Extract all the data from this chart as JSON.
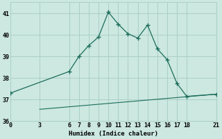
{
  "xlabel": "Humidex (Indice chaleur)",
  "ylabel": "",
  "bg_color": "#cce8e0",
  "grid_color": "#aacfc8",
  "line_color": "#1a6b5a",
  "xlim": [
    0,
    21
  ],
  "ylim": [
    36,
    41.5
  ],
  "yticks": [
    36,
    37,
    38,
    39,
    40,
    41
  ],
  "xticks": [
    0,
    3,
    6,
    7,
    8,
    9,
    10,
    11,
    12,
    13,
    14,
    15,
    16,
    17,
    18,
    21
  ],
  "series1_x": [
    0,
    6,
    7,
    8,
    9,
    10,
    11,
    12,
    13,
    14,
    15,
    16,
    17,
    18,
    21
  ],
  "series1_y": [
    37.3,
    38.3,
    39.0,
    39.5,
    39.9,
    41.05,
    40.5,
    40.05,
    39.85,
    40.45,
    39.35,
    38.85,
    37.75,
    37.15,
    37.25
  ],
  "series2_x": [
    3,
    21
  ],
  "series2_y": [
    36.55,
    37.25
  ],
  "xlabel_fontsize": 6.5,
  "tick_fontsize": 6.0
}
